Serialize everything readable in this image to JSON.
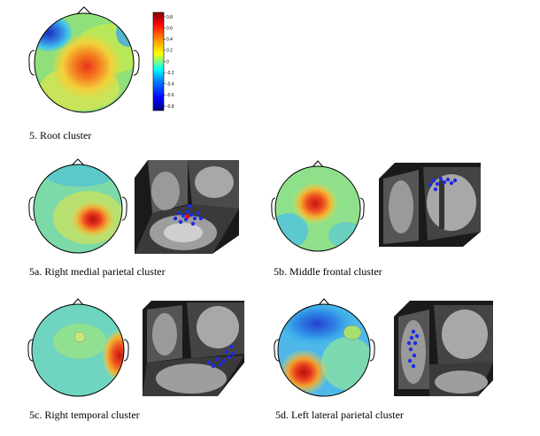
{
  "colormap": {
    "ticks": [
      "0.8",
      "0.6",
      "0.4",
      "0.2",
      "0",
      "-0.2",
      "-0.4",
      "-0.6",
      "-0.8"
    ],
    "stops": [
      "#7f0000",
      "#ff0000",
      "#ffa500",
      "#ffff00",
      "#7fff7f",
      "#00ffff",
      "#0080ff",
      "#0000ff",
      "#00007f"
    ]
  },
  "figures": [
    {
      "id": "root",
      "caption": "5. Root cluster"
    },
    {
      "id": "5a",
      "caption": "5a. Right medial parietal cluster"
    },
    {
      "id": "5b",
      "caption": "5b. Middle frontal cluster"
    },
    {
      "id": "5c",
      "caption": "5c. Right temporal cluster"
    },
    {
      "id": "5d",
      "caption": "5d. Left lateral parietal cluster"
    }
  ]
}
